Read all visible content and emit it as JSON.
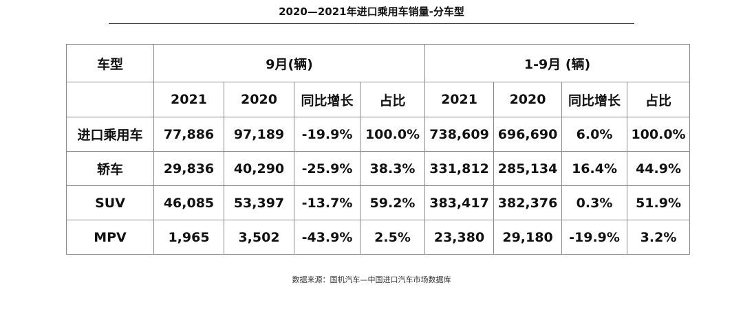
{
  "title": "2020—2021年进口乘用车销量-分车型",
  "table": {
    "header_type": "车型",
    "group_sept": "9月(辆)",
    "group_ytd": "1-9月 (辆)",
    "subheaders": [
      "2021",
      "2020",
      "同比增长",
      "占比",
      "2021",
      "2020",
      "同比增长",
      "占比"
    ],
    "rows": [
      {
        "type": "进口乘用车",
        "cells": [
          "77,886",
          "97,189",
          "-19.9%",
          "100.0%",
          "738,609",
          "696,690",
          "6.0%",
          "100.0%"
        ]
      },
      {
        "type": "轿车",
        "cells": [
          "29,836",
          "40,290",
          "-25.9%",
          "38.3%",
          "331,812",
          "285,134",
          "16.4%",
          "44.9%"
        ]
      },
      {
        "type": "SUV",
        "cells": [
          "46,085",
          "53,397",
          "-13.7%",
          "59.2%",
          "383,417",
          "382,376",
          "0.3%",
          "51.9%"
        ]
      },
      {
        "type": "MPV",
        "cells": [
          "1,965",
          "3,502",
          "-43.9%",
          "2.5%",
          "23,380",
          "29,180",
          "-19.9%",
          "3.2%"
        ]
      }
    ]
  },
  "source": "数据来源：国机汽车—中国进口汽车市场数据库"
}
